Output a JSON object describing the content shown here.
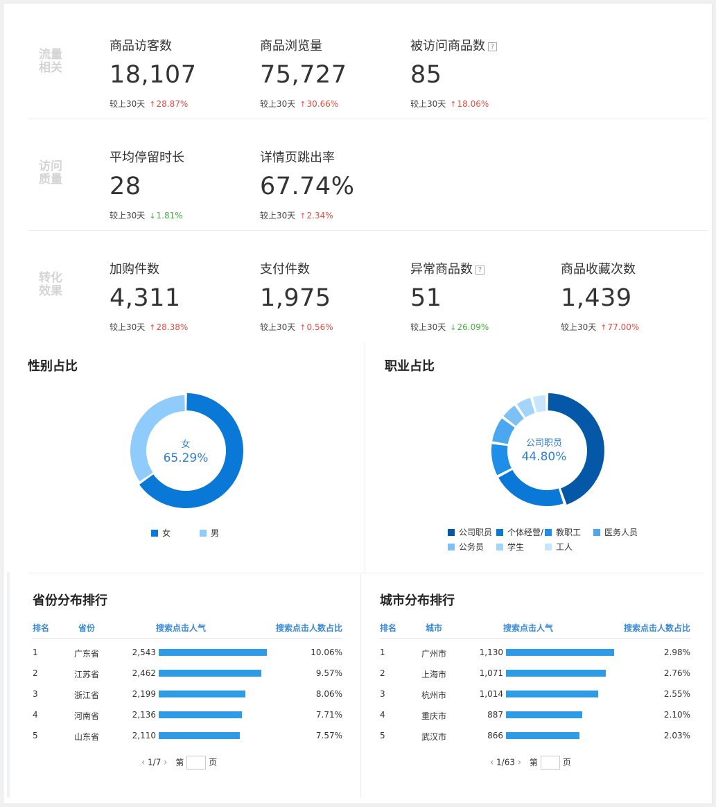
{
  "sections": [
    {
      "label": "流量相关",
      "metrics": [
        {
          "title": "商品访客数",
          "help": false,
          "value": "18,107",
          "compare_label": "较上30天",
          "change": "28.87%",
          "direction": "up"
        },
        {
          "title": "商品浏览量",
          "help": false,
          "value": "75,727",
          "compare_label": "较上30天",
          "change": "30.66%",
          "direction": "up"
        },
        {
          "title": "被访问商品数",
          "help": true,
          "value": "85",
          "compare_label": "较上30天",
          "change": "18.06%",
          "direction": "up"
        }
      ]
    },
    {
      "label": "访问质量",
      "metrics": [
        {
          "title": "平均停留时长",
          "help": false,
          "value": "28",
          "compare_label": "较上30天",
          "change": "1.81%",
          "direction": "down"
        },
        {
          "title": "详情页跳出率",
          "help": false,
          "value": "67.74%",
          "compare_label": "较上30天",
          "change": "2.34%",
          "direction": "up"
        }
      ]
    },
    {
      "label": "转化效果",
      "metrics": [
        {
          "title": "加购件数",
          "help": false,
          "value": "4,311",
          "compare_label": "较上30天",
          "change": "28.38%",
          "direction": "up"
        },
        {
          "title": "支付件数",
          "help": false,
          "value": "1,975",
          "compare_label": "较上30天",
          "change": "0.56%",
          "direction": "up"
        },
        {
          "title": "异常商品数",
          "help": true,
          "value": "51",
          "compare_label": "较上30天",
          "change": "26.09%",
          "direction": "down"
        },
        {
          "title": "商品收藏次数",
          "help": false,
          "value": "1,439",
          "compare_label": "较上30天",
          "change": "77.00%",
          "direction": "up"
        }
      ]
    }
  ],
  "help_glyph": "?",
  "arrow_up": "↑",
  "arrow_down": "↓",
  "colors": {
    "up": "#e64b40",
    "down": "#3fae3a",
    "bar": "#2f9be5",
    "header": "#3a8ad6"
  },
  "gender_panel": {
    "title": "性别占比",
    "center_label": "女",
    "center_value": "65.29%"
  },
  "occupation_panel": {
    "title": "职业占比",
    "center_label": "公司职员",
    "center_value": "44.80%"
  },
  "chart_data": [
    {
      "type": "pie",
      "title": "性别占比",
      "categories": [
        "女",
        "男"
      ],
      "values": [
        65.29,
        34.71
      ],
      "colors": [
        "#0a78d7",
        "#8fcbfb"
      ],
      "legend": "bottom"
    },
    {
      "type": "pie",
      "title": "职业占比",
      "categories": [
        "公司职员",
        "个体经营/",
        "教职工",
        "医务人员",
        "公务员",
        "学生",
        "工人"
      ],
      "values": [
        44.8,
        22.5,
        10.0,
        8.0,
        5.2,
        5.0,
        4.5
      ],
      "colors": [
        "#0558a8",
        "#0a78d7",
        "#1f8ee8",
        "#4ba8f0",
        "#7cc0f5",
        "#a3d4fa",
        "#c7e6fd"
      ],
      "legend": "bottom"
    }
  ],
  "province_table": {
    "title": "省份分布排行",
    "headers": {
      "rank": "排名",
      "name": "省份",
      "clicks": "搜索点击人气",
      "share": "搜索点击人数占比"
    },
    "rows": [
      {
        "rank": "1",
        "name": "广东省",
        "clicks": "2,543",
        "share": "10.06%",
        "bar": 10.06
      },
      {
        "rank": "2",
        "name": "江苏省",
        "clicks": "2,462",
        "share": "9.57%",
        "bar": 9.57
      },
      {
        "rank": "3",
        "name": "浙江省",
        "clicks": "2,199",
        "share": "8.06%",
        "bar": 8.06
      },
      {
        "rank": "4",
        "name": "河南省",
        "clicks": "2,136",
        "share": "7.71%",
        "bar": 7.71
      },
      {
        "rank": "5",
        "name": "山东省",
        "clicks": "2,110",
        "share": "7.57%",
        "bar": 7.57
      }
    ],
    "pager": {
      "prev": "‹",
      "page": "1/7",
      "next": "›",
      "goto_prefix": "第",
      "goto_suffix": "页"
    }
  },
  "city_table": {
    "title": "城市分布排行",
    "headers": {
      "rank": "排名",
      "name": "城市",
      "clicks": "搜索点击人气",
      "share": "搜索点击人数占比"
    },
    "rows": [
      {
        "rank": "1",
        "name": "广州市",
        "clicks": "1,130",
        "share": "2.98%",
        "bar": 2.98
      },
      {
        "rank": "2",
        "name": "上海市",
        "clicks": "1,071",
        "share": "2.76%",
        "bar": 2.76
      },
      {
        "rank": "3",
        "name": "杭州市",
        "clicks": "1,014",
        "share": "2.55%",
        "bar": 2.55
      },
      {
        "rank": "4",
        "name": "重庆市",
        "clicks": "887",
        "share": "2.10%",
        "bar": 2.1
      },
      {
        "rank": "5",
        "name": "武汉市",
        "clicks": "866",
        "share": "2.03%",
        "bar": 2.03
      }
    ],
    "pager": {
      "prev": "‹",
      "page": "1/63",
      "next": "›",
      "goto_prefix": "第",
      "goto_suffix": "页"
    }
  }
}
